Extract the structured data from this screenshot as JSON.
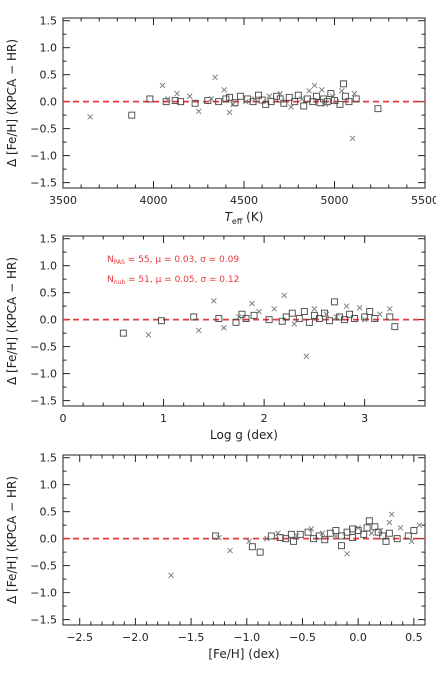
{
  "colors": {
    "axis": "#222222",
    "zero_line": "#e8373d",
    "annotation": "#e8373d",
    "marker": "#444444"
  },
  "chart_data": [
    {
      "type": "scatter",
      "xlabel": "T",
      "xlabel_sub": "eff",
      "xlabel_unit": "(K)",
      "ylabel": "Δ [Fe/H] (KPCA − HR)",
      "xlim": [
        3500,
        5500
      ],
      "ylim": [
        -1.6,
        1.55
      ],
      "xticks": [
        3500,
        4000,
        4500,
        5000,
        5500
      ],
      "xtick_labels": [
        "3500",
        "4000",
        "4500",
        "5000",
        "5500"
      ],
      "yticks": [
        -1.5,
        -1.0,
        -0.5,
        0.0,
        0.5,
        1.0,
        1.5
      ],
      "ytick_labels": [
        "−1.5",
        "−1.0",
        "−0.5",
        "0.0",
        "0.5",
        "1.0",
        "1.5"
      ],
      "reference_line": {
        "y": 0,
        "style": "dashed",
        "color": "#e8373d"
      },
      "series": [
        {
          "marker": "square",
          "points": [
            [
              3880,
              -0.25
            ],
            [
              3980,
              0.05
            ],
            [
              4070,
              0.0
            ],
            [
              4120,
              0.02
            ],
            [
              4150,
              0.0
            ],
            [
              4230,
              -0.03
            ],
            [
              4300,
              0.02
            ],
            [
              4360,
              0.0
            ],
            [
              4400,
              0.05
            ],
            [
              4420,
              0.08
            ],
            [
              4450,
              -0.02
            ],
            [
              4480,
              0.1
            ],
            [
              4520,
              0.05
            ],
            [
              4550,
              0.0
            ],
            [
              4580,
              0.12
            ],
            [
              4600,
              0.03
            ],
            [
              4620,
              -0.05
            ],
            [
              4650,
              0.0
            ],
            [
              4680,
              0.1
            ],
            [
              4700,
              0.05
            ],
            [
              4720,
              -0.03
            ],
            [
              4750,
              0.08
            ],
            [
              4780,
              0.0
            ],
            [
              4800,
              0.12
            ],
            [
              4830,
              -0.08
            ],
            [
              4850,
              0.05
            ],
            [
              4880,
              0.0
            ],
            [
              4900,
              0.1
            ],
            [
              4920,
              -0.02
            ],
            [
              4940,
              0.05
            ],
            [
              4960,
              0.0
            ],
            [
              4980,
              0.15
            ],
            [
              5000,
              0.02
            ],
            [
              5030,
              -0.05
            ],
            [
              5050,
              0.33
            ],
            [
              5060,
              0.1
            ],
            [
              5080,
              0.0
            ],
            [
              5120,
              0.05
            ],
            [
              5240,
              -0.13
            ]
          ]
        },
        {
          "marker": "cross",
          "points": [
            [
              3650,
              -0.28
            ],
            [
              4050,
              0.3
            ],
            [
              4080,
              0.05
            ],
            [
              4130,
              0.15
            ],
            [
              4200,
              0.1
            ],
            [
              4250,
              -0.18
            ],
            [
              4320,
              0.05
            ],
            [
              4340,
              0.45
            ],
            [
              4390,
              0.22
            ],
            [
              4420,
              -0.2
            ],
            [
              4440,
              -0.05
            ],
            [
              4510,
              0.0
            ],
            [
              4560,
              0.05
            ],
            [
              4640,
              0.1
            ],
            [
              4700,
              0.15
            ],
            [
              4760,
              -0.1
            ],
            [
              4820,
              0.05
            ],
            [
              4860,
              0.2
            ],
            [
              4890,
              0.3
            ],
            [
              4930,
              0.22
            ],
            [
              4950,
              -0.05
            ],
            [
              4990,
              0.1
            ],
            [
              5010,
              0.0
            ],
            [
              5040,
              0.2
            ],
            [
              5100,
              -0.68
            ],
            [
              5110,
              0.15
            ]
          ]
        }
      ]
    },
    {
      "type": "scatter",
      "xlabel": "Log g (dex)",
      "ylabel": "Δ [Fe/H] (KPCA − HR)",
      "xlim": [
        0,
        3.6
      ],
      "ylim": [
        -1.6,
        1.55
      ],
      "xticks": [
        0,
        1,
        2,
        3
      ],
      "xtick_labels": [
        "0",
        "1",
        "2",
        "3"
      ],
      "yticks": [
        -1.5,
        -1.0,
        -0.5,
        0.0,
        0.5,
        1.0,
        1.5
      ],
      "ytick_labels": [
        "−1.5",
        "−1.0",
        "−0.5",
        "0.0",
        "0.5",
        "1.0",
        "1.5"
      ],
      "reference_line": {
        "y": 0,
        "style": "dashed",
        "color": "#e8373d"
      },
      "annotations": [
        {
          "pre": "N",
          "sub": "PAS",
          "post": " = 55, μ = 0.03, σ = 0.09"
        },
        {
          "pre": "N",
          "sub": "nub",
          "post": " = 51, μ = 0.05, σ = 0.12"
        }
      ],
      "series": [
        {
          "marker": "square",
          "points": [
            [
              0.6,
              -0.25
            ],
            [
              0.98,
              -0.02
            ],
            [
              1.3,
              0.05
            ],
            [
              1.55,
              0.02
            ],
            [
              1.72,
              -0.05
            ],
            [
              1.78,
              0.1
            ],
            [
              1.82,
              0.02
            ],
            [
              1.9,
              0.08
            ],
            [
              2.05,
              0.0
            ],
            [
              2.18,
              -0.03
            ],
            [
              2.22,
              0.05
            ],
            [
              2.28,
              0.12
            ],
            [
              2.35,
              0.02
            ],
            [
              2.4,
              0.15
            ],
            [
              2.45,
              -0.05
            ],
            [
              2.5,
              0.08
            ],
            [
              2.55,
              0.02
            ],
            [
              2.6,
              0.12
            ],
            [
              2.65,
              -0.02
            ],
            [
              2.7,
              0.33
            ],
            [
              2.75,
              0.05
            ],
            [
              2.8,
              0.0
            ],
            [
              2.85,
              0.1
            ],
            [
              2.9,
              0.02
            ],
            [
              3.0,
              0.05
            ],
            [
              3.05,
              0.15
            ],
            [
              3.1,
              0.02
            ],
            [
              3.25,
              0.05
            ],
            [
              3.3,
              -0.13
            ]
          ]
        },
        {
          "marker": "cross",
          "points": [
            [
              0.85,
              -0.28
            ],
            [
              1.35,
              -0.2
            ],
            [
              1.5,
              0.35
            ],
            [
              1.6,
              -0.15
            ],
            [
              1.75,
              0.05
            ],
            [
              1.88,
              0.3
            ],
            [
              1.95,
              0.15
            ],
            [
              2.1,
              0.2
            ],
            [
              2.2,
              0.45
            ],
            [
              2.3,
              -0.08
            ],
            [
              2.42,
              -0.68
            ],
            [
              2.5,
              0.2
            ],
            [
              2.62,
              0.1
            ],
            [
              2.72,
              0.05
            ],
            [
              2.82,
              0.25
            ],
            [
              2.95,
              0.22
            ],
            [
              3.0,
              0.0
            ],
            [
              3.15,
              0.1
            ],
            [
              3.25,
              0.2
            ]
          ]
        }
      ]
    },
    {
      "type": "scatter",
      "xlabel": "[Fe/H] (dex)",
      "ylabel": "Δ [Fe/H] (KPCA − HR)",
      "xlim": [
        -2.65,
        0.6
      ],
      "ylim": [
        -1.6,
        1.55
      ],
      "xticks": [
        -2.5,
        -2.0,
        -1.5,
        -1.0,
        -0.5,
        0.0,
        0.5
      ],
      "xtick_labels": [
        "−2.5",
        "−2.0",
        "−1.5",
        "−1.0",
        "−0.5",
        "0.0",
        "0.5"
      ],
      "yticks": [
        -1.5,
        -1.0,
        -0.5,
        0.0,
        0.5,
        1.0,
        1.5
      ],
      "ytick_labels": [
        "−1.5",
        "−1.0",
        "−0.5",
        "0.0",
        "0.5",
        "1.0",
        "1.5"
      ],
      "reference_line": {
        "y": 0,
        "style": "dashed",
        "color": "#e8373d"
      },
      "series": [
        {
          "marker": "square",
          "points": [
            [
              -1.28,
              0.05
            ],
            [
              -0.95,
              -0.15
            ],
            [
              -0.88,
              -0.25
            ],
            [
              -0.78,
              0.05
            ],
            [
              -0.65,
              0.0
            ],
            [
              -0.58,
              -0.05
            ],
            [
              -0.52,
              0.08
            ],
            [
              -0.45,
              0.12
            ],
            [
              -0.4,
              0.0
            ],
            [
              -0.35,
              0.05
            ],
            [
              -0.3,
              -0.02
            ],
            [
              -0.25,
              0.1
            ],
            [
              -0.2,
              0.15
            ],
            [
              -0.15,
              0.05
            ],
            [
              -0.1,
              0.12
            ],
            [
              -0.05,
              0.02
            ],
            [
              0.0,
              0.15
            ],
            [
              0.05,
              0.08
            ],
            [
              0.08,
              0.2
            ],
            [
              0.1,
              0.33
            ],
            [
              0.15,
              0.22
            ],
            [
              0.18,
              0.12
            ],
            [
              0.22,
              0.05
            ],
            [
              0.28,
              0.1
            ],
            [
              0.35,
              0.0
            ],
            [
              0.45,
              0.05
            ],
            [
              0.5,
              0.15
            ],
            [
              -0.6,
              0.08
            ],
            [
              -0.7,
              0.02
            ],
            [
              -0.05,
              0.18
            ],
            [
              -0.15,
              -0.13
            ],
            [
              0.25,
              -0.05
            ]
          ]
        },
        {
          "marker": "cross",
          "points": [
            [
              -1.68,
              -0.68
            ],
            [
              -1.25,
              0.02
            ],
            [
              -1.15,
              -0.22
            ],
            [
              -0.98,
              -0.05
            ],
            [
              -0.82,
              0.0
            ],
            [
              -0.72,
              0.1
            ],
            [
              -0.55,
              0.05
            ],
            [
              -0.42,
              0.18
            ],
            [
              -0.32,
              0.1
            ],
            [
              -0.2,
              0.05
            ],
            [
              -0.1,
              -0.28
            ],
            [
              0.0,
              0.2
            ],
            [
              0.12,
              0.1
            ],
            [
              0.2,
              0.15
            ],
            [
              0.28,
              0.3
            ],
            [
              0.3,
              0.45
            ],
            [
              0.38,
              0.2
            ],
            [
              0.55,
              0.25
            ],
            [
              0.48,
              -0.05
            ]
          ]
        }
      ]
    }
  ]
}
